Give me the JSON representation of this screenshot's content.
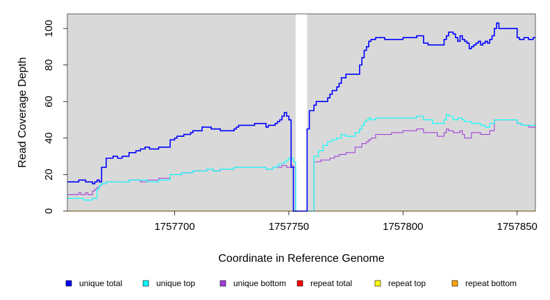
{
  "chart_data": {
    "type": "line",
    "line_style": "step",
    "title": "",
    "xlabel": "Coordinate in Reference Genome",
    "ylabel": "Read Coverage Depth",
    "xlim": [
      1757653,
      1757858
    ],
    "ylim": [
      0,
      108
    ],
    "x_ticks": [
      1757700,
      1757750,
      1757800,
      1757850
    ],
    "x_tick_labels": [
      "1757700",
      "1757750",
      "1757800",
      "1757850"
    ],
    "y_ticks": [
      0,
      20,
      40,
      60,
      80,
      100
    ],
    "y_tick_labels": [
      "0",
      "20",
      "40",
      "60",
      "80",
      "100"
    ],
    "grid": false,
    "background": "#d9d9d9",
    "gap_region": [
      1757753,
      1757758
    ],
    "legend_position": "bottom",
    "series": [
      {
        "name": "unique total",
        "color": "#0000ff",
        "x": [
          1757653,
          1757658,
          1757661,
          1757664,
          1757665,
          1757666,
          1757667,
          1757668,
          1757670,
          1757673,
          1757675,
          1757677,
          1757680,
          1757683,
          1757685,
          1757687,
          1757689,
          1757693,
          1757698,
          1757700,
          1757701,
          1757702,
          1757704,
          1757707,
          1757708,
          1757712,
          1757716,
          1757720,
          1757726,
          1757727,
          1757728,
          1757733,
          1757735,
          1757740,
          1757741,
          1757743,
          1757744,
          1757745,
          1757746,
          1757747,
          1757748,
          1757749,
          1757750,
          1757751,
          1757752,
          1757753,
          1757758,
          1757759,
          1757761,
          1757762,
          1757764,
          1757767,
          1757768,
          1757769,
          1757771,
          1757772,
          1757773,
          1757775,
          1757777,
          1757779,
          1757781,
          1757782,
          1757783,
          1757784,
          1757785,
          1757786,
          1757788,
          1757792,
          1757795,
          1757800,
          1757806,
          1757809,
          1757811,
          1757814,
          1757815,
          1757818,
          1757819,
          1757820,
          1757822,
          1757823,
          1757824,
          1757825,
          1757826,
          1757827,
          1757828,
          1757829,
          1757830,
          1757831,
          1757832,
          1757833,
          1757834,
          1757835,
          1757836,
          1757837,
          1757838,
          1757839,
          1757840,
          1757841,
          1757842,
          1757846,
          1757850,
          1757851,
          1757853,
          1757855,
          1757857,
          1757858
        ],
        "values": [
          16,
          17,
          16,
          15,
          16,
          17,
          16,
          24,
          29,
          30,
          29,
          30,
          32,
          33,
          34,
          35,
          34,
          35,
          39,
          40,
          41,
          41,
          42,
          43,
          44,
          46,
          45,
          44,
          45,
          46,
          47,
          47,
          48,
          46,
          47,
          47,
          48,
          49,
          50,
          52,
          54,
          52,
          50,
          24,
          0,
          0,
          45,
          55,
          58,
          60,
          60,
          62,
          64,
          66,
          68,
          70,
          73,
          75,
          75,
          75,
          80,
          84,
          88,
          90,
          93,
          94,
          95,
          94,
          94,
          95,
          96,
          92,
          91,
          91,
          91,
          94,
          96,
          98,
          97,
          95,
          93,
          96,
          94,
          93,
          92,
          89,
          90,
          91,
          92,
          93,
          91,
          92,
          93,
          92,
          94,
          96,
          100,
          103,
          100,
          100,
          95,
          94,
          95,
          94,
          95,
          95
        ]
      },
      {
        "name": "unique top",
        "color": "#00ffff",
        "x": [
          1757653,
          1757660,
          1757664,
          1757666,
          1757667,
          1757668,
          1757670,
          1757673,
          1757680,
          1757685,
          1757688,
          1757693,
          1757698,
          1757703,
          1757708,
          1757714,
          1757716,
          1757717,
          1757720,
          1757726,
          1757735,
          1757740,
          1757743,
          1757745,
          1757746,
          1757748,
          1757749,
          1757750,
          1757752,
          1757753,
          1757758,
          1757761,
          1757763,
          1757765,
          1757767,
          1757769,
          1757771,
          1757773,
          1757775,
          1757779,
          1757781,
          1757782,
          1757783,
          1757784,
          1757785,
          1757786,
          1757788,
          1757795,
          1757800,
          1757806,
          1757809,
          1757813,
          1757818,
          1757819,
          1757820,
          1757822,
          1757824,
          1757826,
          1757827,
          1757830,
          1757834,
          1757836,
          1757838,
          1757840,
          1757844,
          1757850,
          1757852,
          1757855,
          1757858
        ],
        "values": [
          7,
          6,
          7,
          12,
          14,
          15,
          16,
          16,
          17,
          17,
          16,
          17,
          20,
          21,
          22,
          23,
          23,
          22,
          23,
          24,
          24,
          23,
          24,
          25,
          26,
          27,
          28,
          29,
          27,
          0,
          0,
          30,
          33,
          36,
          38,
          39,
          40,
          42,
          41,
          43,
          45,
          47,
          49,
          50,
          51,
          50,
          51,
          51,
          51,
          52,
          50,
          48,
          50,
          53,
          52,
          50,
          51,
          50,
          49,
          48,
          47,
          46,
          48,
          50,
          50,
          48,
          47,
          47,
          47
        ]
      },
      {
        "name": "unique bottom",
        "color": "#a040d8",
        "x": [
          1757653,
          1757658,
          1757659,
          1757661,
          1757662,
          1757664,
          1757665,
          1757666,
          1757667,
          1757668,
          1757670,
          1757673,
          1757680,
          1757685,
          1757688,
          1757693,
          1757698,
          1757703,
          1757708,
          1757714,
          1757716,
          1757717,
          1757720,
          1757726,
          1757735,
          1757740,
          1757743,
          1757747,
          1757749,
          1757751,
          1757752,
          1757753,
          1757758,
          1757761,
          1757764,
          1757766,
          1757768,
          1757770,
          1757772,
          1757775,
          1757779,
          1757782,
          1757784,
          1757785,
          1757786,
          1757788,
          1757795,
          1757800,
          1757806,
          1757809,
          1757815,
          1757818,
          1757819,
          1757820,
          1757822,
          1757825,
          1757826,
          1757827,
          1757830,
          1757834,
          1757838,
          1757840,
          1757844,
          1757850,
          1757852,
          1757855,
          1757858
        ],
        "values": [
          9,
          10,
          9,
          10,
          9,
          11,
          12,
          13,
          14,
          15,
          16,
          16,
          17,
          16,
          17,
          18,
          20,
          21,
          22,
          23,
          23,
          22,
          23,
          24,
          24,
          23,
          24,
          25,
          24,
          25,
          24,
          0,
          0,
          27,
          28,
          28,
          29,
          30,
          31,
          32,
          35,
          37,
          38,
          39,
          40,
          42,
          43,
          44,
          45,
          43,
          41,
          43,
          45,
          44,
          43,
          44,
          42,
          40,
          43,
          42,
          44,
          50,
          50,
          48,
          47,
          46,
          46
        ]
      },
      {
        "name": "repeat total",
        "color": "#ff0000",
        "x": [
          1757653,
          1757858
        ],
        "values": [
          0,
          0
        ]
      },
      {
        "name": "repeat top",
        "color": "#ffff00",
        "x": [
          1757653,
          1757858
        ],
        "values": [
          0,
          0
        ]
      },
      {
        "name": "repeat bottom",
        "color": "#ffa500",
        "x": [
          1757653,
          1757858
        ],
        "values": [
          0,
          0
        ]
      }
    ]
  }
}
